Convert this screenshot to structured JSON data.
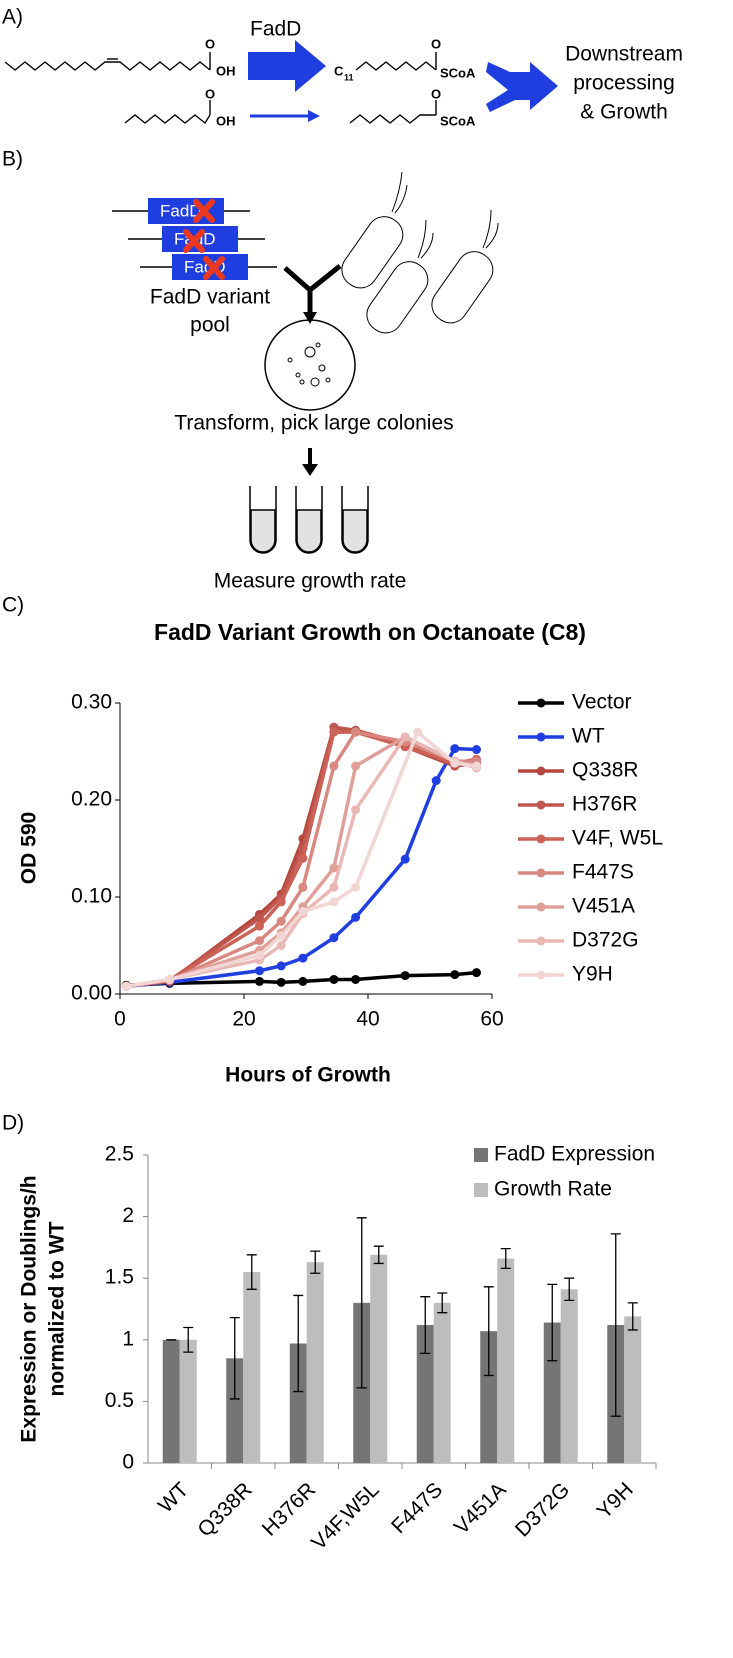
{
  "panels": {
    "a": "A)",
    "b": "B)",
    "c": "C)",
    "d": "D)"
  },
  "pathway": {
    "enzyme": "FadD",
    "oxygen": "O",
    "hydroxyl": "OH",
    "thioester": "SCoA",
    "carbon": "C",
    "chain_length": "11",
    "outcome": [
      "Downstream",
      "processing",
      "& Growth"
    ]
  },
  "screen": {
    "gene": "FadD",
    "pool": [
      "FadD variant",
      "pool"
    ],
    "step1": "Transform, pick large colonies",
    "step2": "Measure growth rate"
  },
  "chart_data": [
    {
      "type": "line",
      "title": "FadD Variant Growth on Octanoate (C8)",
      "xlabel": "Hours of Growth",
      "ylabel": "OD 590",
      "xlim": [
        0,
        60
      ],
      "xticks": [
        0,
        20,
        40,
        60
      ],
      "ylim": [
        0,
        0.3
      ],
      "yticks": [
        {
          "value": 0,
          "label": "0.00"
        },
        {
          "value": 0.1,
          "label": "0.10"
        },
        {
          "value": 0.2,
          "label": "0.20"
        },
        {
          "value": 0.3,
          "label": "0.30"
        }
      ],
      "legend": "right",
      "series": [
        {
          "name": "Vector",
          "color": "#000000",
          "x": [
            1,
            8,
            22.5,
            26,
            29.5,
            34.5,
            38,
            46,
            54,
            57.5
          ],
          "values": [
            0.009,
            0.011,
            0.013,
            0.012,
            0.013,
            0.015,
            0.015,
            0.019,
            0.02,
            0.022
          ]
        },
        {
          "name": "WT",
          "color": "#1f3ee0",
          "x": [
            1,
            8,
            22.5,
            26,
            29.5,
            34.5,
            38,
            46,
            51,
            54,
            57.5
          ],
          "values": [
            0.008,
            0.012,
            0.024,
            0.029,
            0.037,
            0.058,
            0.079,
            0.139,
            0.22,
            0.253,
            0.252
          ]
        },
        {
          "name": "Q338R",
          "color": "#b5473f",
          "x": [
            1,
            8,
            22.5,
            26,
            29.5,
            34.5,
            38,
            46,
            54,
            57.5
          ],
          "values": [
            0.008,
            0.013,
            0.082,
            0.103,
            0.16,
            0.275,
            0.27,
            0.255,
            0.235,
            0.238
          ]
        },
        {
          "name": "H376R",
          "color": "#c0574f",
          "x": [
            1,
            8,
            22.5,
            26,
            29.5,
            34.5,
            38,
            46,
            54,
            57.5
          ],
          "values": [
            0.008,
            0.014,
            0.078,
            0.1,
            0.15,
            0.275,
            0.272,
            0.258,
            0.236,
            0.24
          ]
        },
        {
          "name": "V4F, W5L",
          "color": "#cc6156",
          "x": [
            1,
            8,
            22.5,
            26,
            29.5,
            34.5,
            38,
            46,
            54,
            57.5
          ],
          "values": [
            0.008,
            0.014,
            0.07,
            0.095,
            0.14,
            0.27,
            0.27,
            0.255,
            0.238,
            0.242
          ]
        },
        {
          "name": "F447S",
          "color": "#d88880",
          "x": [
            1,
            8,
            22.5,
            26,
            29.5,
            34.5,
            38,
            46,
            54,
            57.5
          ],
          "values": [
            0.008,
            0.014,
            0.055,
            0.075,
            0.11,
            0.235,
            0.27,
            0.26,
            0.24,
            0.24
          ]
        },
        {
          "name": "V451A",
          "color": "#e0a09a",
          "x": [
            1,
            8,
            22.5,
            26,
            29.5,
            34.5,
            38,
            46,
            54,
            57.5
          ],
          "values": [
            0.008,
            0.015,
            0.045,
            0.063,
            0.09,
            0.13,
            0.235,
            0.265,
            0.24,
            0.235
          ]
        },
        {
          "name": "D372G",
          "color": "#eab8b4",
          "x": [
            1,
            8,
            22.5,
            26,
            29.5,
            34.5,
            38,
            46,
            54,
            57.5
          ],
          "values": [
            0.008,
            0.015,
            0.035,
            0.05,
            0.083,
            0.11,
            0.19,
            0.265,
            0.24,
            0.233
          ]
        },
        {
          "name": "Y9H",
          "color": "#f2d6d3",
          "x": [
            1,
            8,
            22.5,
            26,
            29.5,
            34.5,
            38,
            48,
            54,
            57.5
          ],
          "values": [
            0.008,
            0.015,
            0.04,
            0.06,
            0.085,
            0.095,
            0.11,
            0.27,
            0.238,
            0.235
          ]
        }
      ]
    },
    {
      "type": "bar",
      "ylabel": [
        "Expression or Doublings/h",
        "normalized to WT"
      ],
      "categories": [
        "WT",
        "Q338R",
        "H376R",
        "V4F,W5L",
        "F447S",
        "V451A",
        "D372G",
        "Y9H"
      ],
      "ylim": [
        0,
        2.5
      ],
      "yticks": [
        0,
        0.5,
        1,
        1.5,
        2,
        2.5
      ],
      "legend": "upper right",
      "series": [
        {
          "name": "FadD Expression",
          "color": "#757575",
          "values": [
            1,
            0.85,
            0.97,
            1.3,
            1.12,
            1.07,
            1.14,
            1.12
          ],
          "errors": [
            0,
            0.33,
            0.39,
            0.69,
            0.23,
            0.36,
            0.31,
            0.74
          ]
        },
        {
          "name": "Growth Rate",
          "color": "#bdbdbd",
          "values": [
            1,
            1.55,
            1.63,
            1.69,
            1.3,
            1.66,
            1.41,
            1.19
          ],
          "errors": [
            0.1,
            0.14,
            0.09,
            0.07,
            0.08,
            0.08,
            0.09,
            0.11
          ]
        }
      ]
    }
  ]
}
